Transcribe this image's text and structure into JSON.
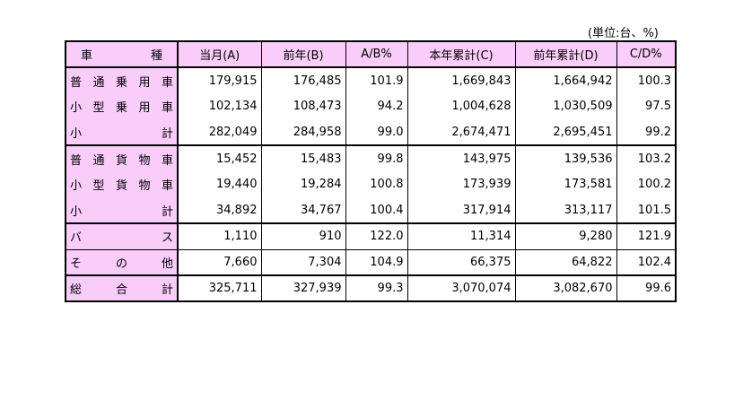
{
  "unit_note": "(単位:台、%)",
  "table": {
    "header": [
      "車種",
      "当月(A)",
      "前年(B)",
      "A/B%",
      "本年累計(C)",
      "前年累計(D)",
      "C/D%"
    ],
    "rows": [
      [
        "普通乗用車",
        "179,915",
        "176,485",
        "101.9",
        "1,669,843",
        "1,664,942",
        "100.3"
      ],
      [
        "小型乗用車",
        "102,134",
        "108,473",
        "94.2",
        "1,004,628",
        "1,030,509",
        "97.5"
      ],
      [
        "小計",
        "282,049",
        "284,958",
        "99.0",
        "2,674,471",
        "2,695,451",
        "99.2"
      ],
      [
        "普通貨物車",
        "15,452",
        "15,483",
        "99.8",
        "143,975",
        "139,536",
        "103.2"
      ],
      [
        "小型貨物車",
        "19,440",
        "19,284",
        "100.8",
        "173,939",
        "173,581",
        "100.2"
      ],
      [
        "小計",
        "34,892",
        "34,767",
        "100.4",
        "317,914",
        "313,117",
        "101.5"
      ],
      [
        "バス",
        "1,110",
        "910",
        "122.0",
        "11,314",
        "9,280",
        "121.9"
      ],
      [
        "その他",
        "7,660",
        "7,304",
        "104.9",
        "66,375",
        "64,822",
        "102.4"
      ],
      [
        "総合計",
        "325,711",
        "327,939",
        "99.3",
        "3,070,074",
        "3,082,670",
        "99.6"
      ]
    ]
  }
}
